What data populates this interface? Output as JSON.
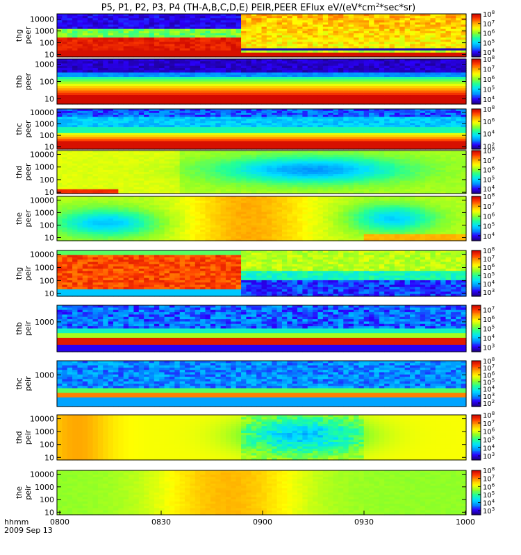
{
  "chart_data": {
    "type": "heatmap",
    "title": "P5, P1, P2, P3, P4 (TH-A,B,C,D,E) PEIR,PEER EFlux eV/(eV*cm2*sec*sr)",
    "title_parts": {
      "main": "P5, P1, P2, P3, P4 (TH-A,B,C,D,E) PEIR,PEER EFlux eV/(eV*cm",
      "sup": "2",
      "tail": "*sec*sr)"
    },
    "x_axis": {
      "label_top": "hhmm",
      "label_bottom": "2009 Sep 13",
      "ticks": [
        "0800",
        "0830",
        "0900",
        "0930",
        "1000"
      ],
      "range_minutes": [
        0,
        120
      ]
    },
    "panels": [
      {
        "label1": "thg",
        "label2": "peer",
        "y_ticks": [
          "10000",
          "1000",
          "100",
          "10"
        ],
        "cbar_ticks": [
          "8",
          "7",
          "6",
          "5",
          "4"
        ],
        "yrange_log10": [
          0.8,
          4.45
        ],
        "value_range_log10": [
          3.5,
          8
        ]
      },
      {
        "label1": "thb",
        "label2": "peer",
        "y_ticks": [
          "1000",
          "100",
          "10"
        ],
        "cbar_ticks": [
          "8",
          "7",
          "6",
          "5",
          "4"
        ],
        "yrange_log10": [
          0.7,
          3.3
        ],
        "value_range_log10": [
          3.5,
          8
        ]
      },
      {
        "label1": "thc",
        "label2": "peer",
        "y_ticks": [
          "10000",
          "1000",
          "100",
          "10"
        ],
        "cbar_ticks": [
          "8",
          "6",
          "4",
          "2"
        ],
        "yrange_log10": [
          0.8,
          4.3
        ],
        "value_range_log10": [
          1.5,
          8
        ]
      },
      {
        "label1": "thd",
        "label2": "peer",
        "y_ticks": [
          "10000",
          "1000",
          "100",
          "10"
        ],
        "cbar_ticks": [
          "8",
          "7",
          "6",
          "5",
          "4"
        ],
        "yrange_log10": [
          0.9,
          4.3
        ],
        "value_range_log10": [
          3.5,
          8
        ]
      },
      {
        "label1": "the",
        "label2": "peer",
        "y_ticks": [
          "10000",
          "1000",
          "100",
          "10"
        ],
        "cbar_ticks": [
          "8",
          "7",
          "6",
          "5",
          "4"
        ],
        "yrange_log10": [
          0.75,
          4.3
        ],
        "value_range_log10": [
          3.5,
          8
        ]
      },
      {
        "label1": "thg",
        "label2": "peir",
        "y_ticks": [
          "10000",
          "1000",
          "100",
          "10"
        ],
        "cbar_ticks": [
          "8",
          "7",
          "6",
          "5",
          "4",
          "3"
        ],
        "yrange_log10": [
          0.8,
          4.3
        ],
        "value_range_log10": [
          2.5,
          8
        ]
      },
      {
        "label1": "thb",
        "label2": "peir",
        "y_ticks": [
          "1000"
        ],
        "cbar_ticks": [
          "7",
          "6",
          "5",
          "4",
          "3"
        ],
        "yrange_log10": [
          2.1,
          3.5
        ],
        "value_range_log10": [
          2.5,
          7.5
        ]
      },
      {
        "label1": "thc",
        "label2": "peir",
        "y_ticks": [
          "1000"
        ],
        "cbar_ticks": [
          "8",
          "7",
          "6",
          "5",
          "4",
          "3",
          "2"
        ],
        "yrange_log10": [
          2.1,
          3.4
        ],
        "value_range_log10": [
          1.5,
          8
        ]
      },
      {
        "label1": "thd",
        "label2": "peir",
        "y_ticks": [
          "10000",
          "1000",
          "100",
          "10"
        ],
        "cbar_ticks": [
          "8",
          "7",
          "6",
          "5",
          "4",
          "3"
        ],
        "yrange_log10": [
          0.8,
          4.3
        ],
        "value_range_log10": [
          2.5,
          8
        ]
      },
      {
        "label1": "the",
        "label2": "peir",
        "y_ticks": [
          "10000",
          "1000",
          "100",
          "10"
        ],
        "cbar_ticks": [
          "8",
          "7",
          "6",
          "5",
          "4",
          "3"
        ],
        "yrange_log10": [
          0.8,
          4.3
        ],
        "value_range_log10": [
          2.5,
          8
        ]
      }
    ],
    "cbar_base": "10",
    "colormap": [
      "#1a007a",
      "#2b00ff",
      "#0090ff",
      "#00e0ff",
      "#20ff9a",
      "#8cff28",
      "#ffff00",
      "#ffaa00",
      "#ff3c00",
      "#c80000"
    ]
  }
}
